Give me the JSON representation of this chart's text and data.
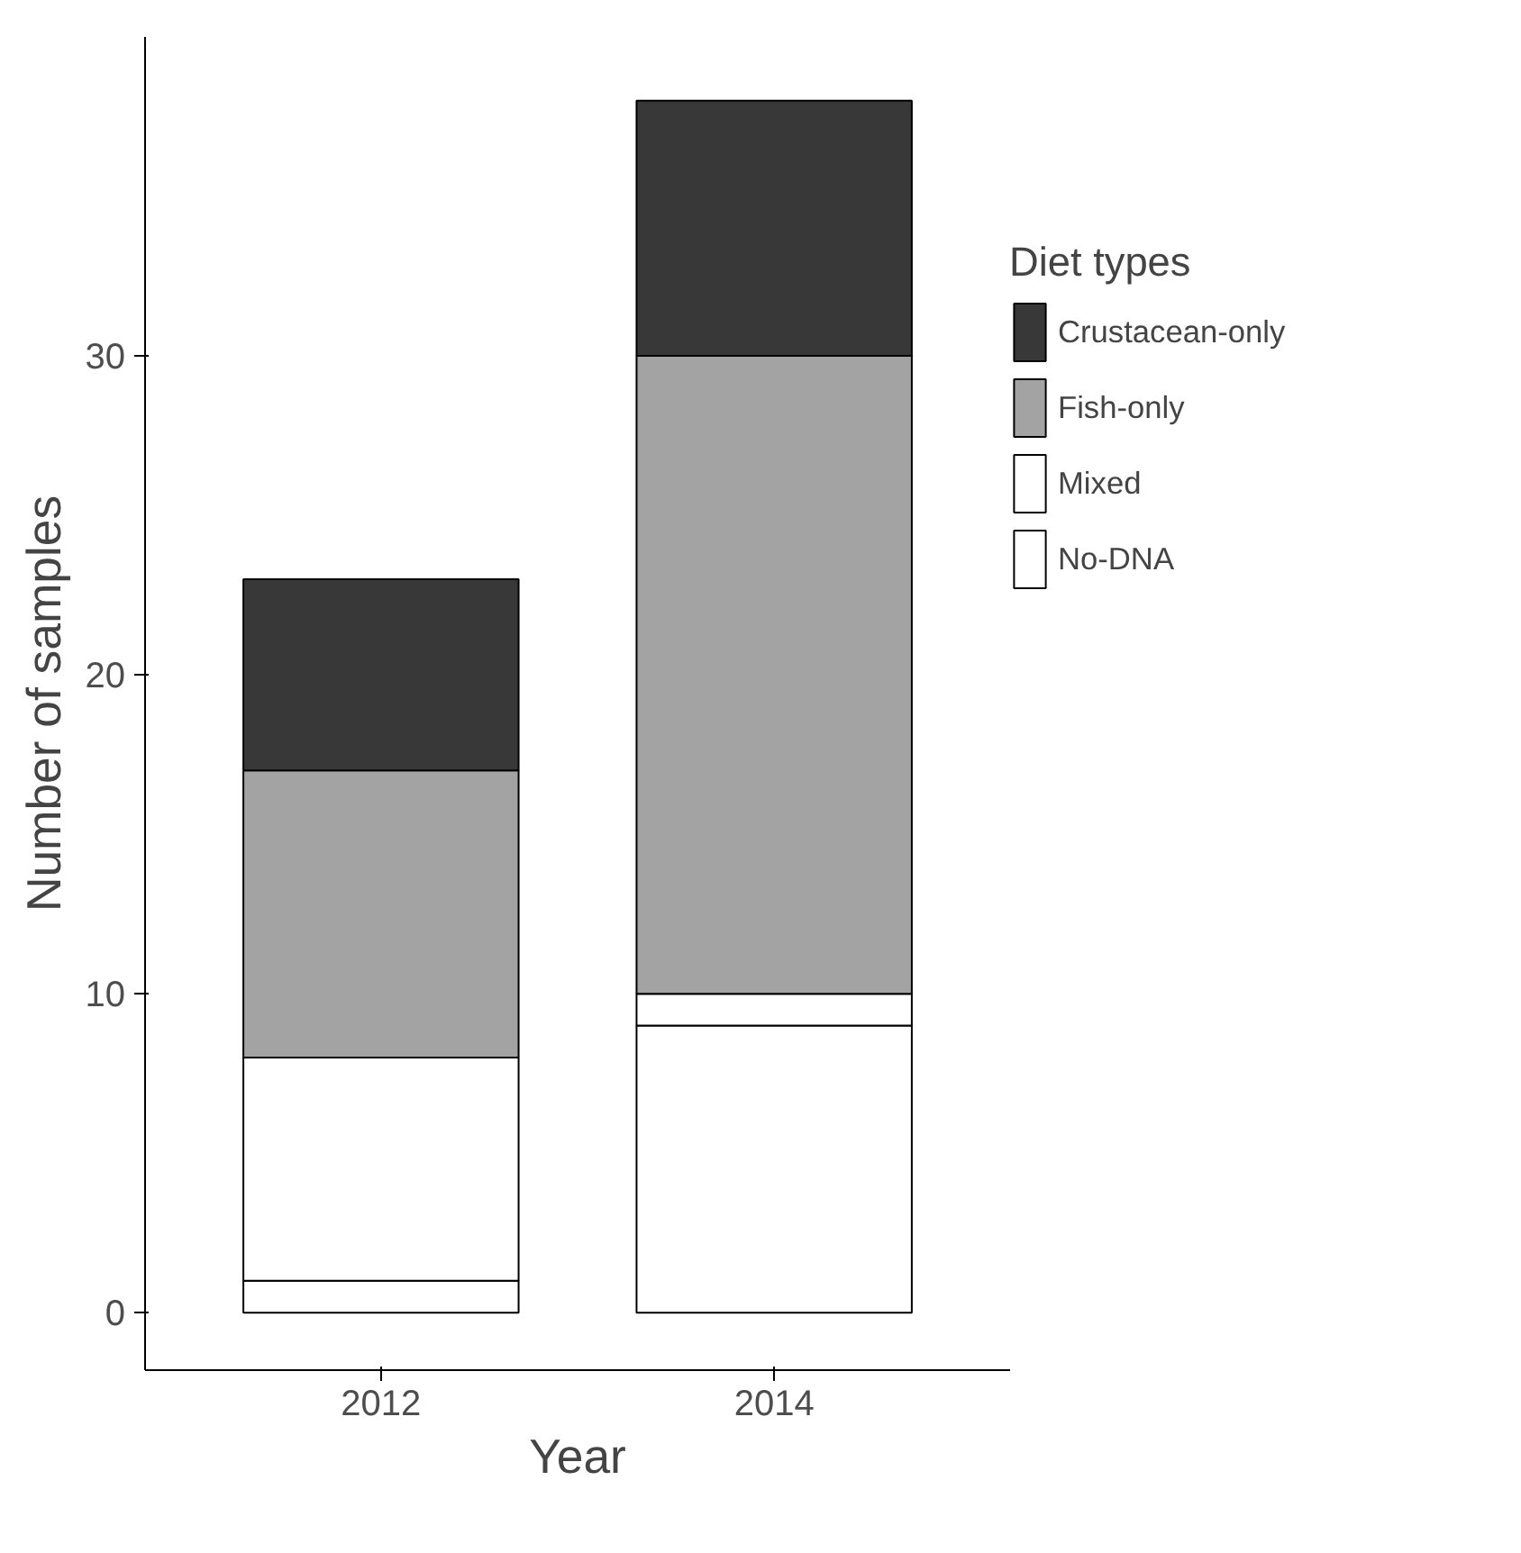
{
  "chart_data": {
    "type": "bar",
    "stacked": true,
    "xlabel": "Year",
    "ylabel": "Number of samples",
    "legend_title": "Diet types",
    "categories": [
      "2012",
      "2014"
    ],
    "series": [
      {
        "name": "No-DNA",
        "color": "#ffffff",
        "values": [
          1,
          9
        ]
      },
      {
        "name": "Mixed",
        "color": "#ffffff",
        "values": [
          7,
          1
        ]
      },
      {
        "name": "Fish-only",
        "color": "#a3a3a3",
        "values": [
          9,
          20
        ]
      },
      {
        "name": "Crustacean-only",
        "color": "#383838",
        "values": [
          6,
          8
        ]
      }
    ],
    "ylim": [
      -1.8,
      40
    ],
    "yticks": [
      0,
      10,
      20,
      30
    ],
    "grid": false,
    "legend": "right"
  }
}
